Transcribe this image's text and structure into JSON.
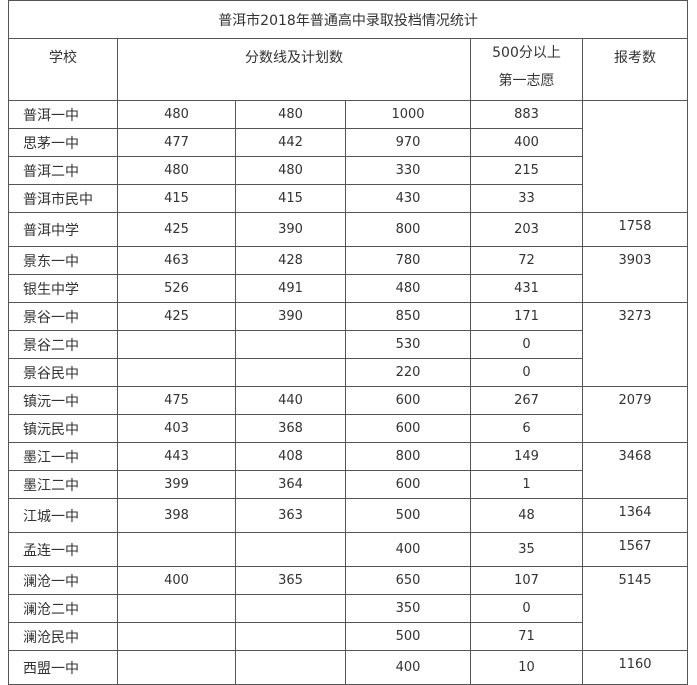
{
  "title": "普洱市2018年普通高中录取投档情况统计",
  "header": {
    "school": "学校",
    "scores": "分数线及计划数",
    "first_choice": "500分以上第一志愿",
    "applicants": "报考数"
  },
  "rows": [
    [
      "普洱一中",
      480,
      480,
      1000,
      883,
      null
    ],
    [
      "思茅一中",
      477,
      442,
      970,
      400,
      null
    ],
    [
      "普洱二中",
      480,
      480,
      330,
      215,
      null
    ],
    [
      "普洱市民中",
      415,
      415,
      430,
      33,
      null
    ],
    [
      "普洱中学",
      425,
      390,
      800,
      203,
      1758
    ],
    [
      "景东一中",
      463,
      428,
      780,
      72,
      3903
    ],
    [
      "银生中学",
      526,
      491,
      480,
      431,
      null
    ],
    [
      "景谷一中",
      425,
      390,
      850,
      171,
      3273
    ],
    [
      "景谷二中",
      null,
      null,
      530,
      0,
      null
    ],
    [
      "景谷民中",
      null,
      null,
      220,
      0,
      null
    ],
    [
      "镇沅一中",
      475,
      440,
      600,
      267,
      2079
    ],
    [
      "镇沅民中",
      403,
      368,
      600,
      6,
      null
    ],
    [
      "墨江一中",
      443,
      408,
      800,
      149,
      3468
    ],
    [
      "墨江二中",
      399,
      364,
      600,
      1,
      null
    ],
    [
      "江城一中",
      398,
      363,
      500,
      48,
      1364
    ],
    [
      "孟连一中",
      null,
      null,
      400,
      35,
      1567
    ],
    [
      "澜沧一中",
      400,
      365,
      650,
      107,
      5145
    ],
    [
      "澜沧二中",
      null,
      null,
      350,
      0,
      null
    ],
    [
      "澜沧民中",
      null,
      null,
      500,
      71,
      null
    ],
    [
      "西盟一中",
      null,
      null,
      400,
      10,
      1160
    ]
  ]
}
